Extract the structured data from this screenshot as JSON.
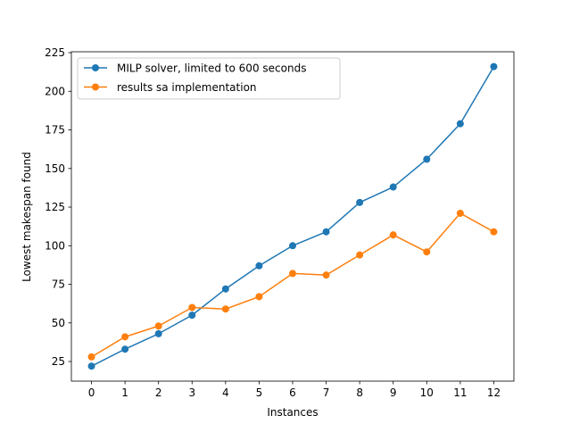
{
  "chart_data": {
    "type": "line",
    "x": [
      0,
      1,
      2,
      3,
      4,
      5,
      6,
      7,
      8,
      9,
      10,
      11,
      12
    ],
    "xlabel": "Instances",
    "ylabel": "Lowest makespan found",
    "xticks": [
      "0",
      "1",
      "2",
      "3",
      "4",
      "5",
      "6",
      "7",
      "8",
      "9",
      "10",
      "11",
      "12"
    ],
    "yticks": [
      25,
      50,
      75,
      100,
      125,
      150,
      175,
      200,
      225
    ],
    "xlim": [
      -0.6,
      12.6
    ],
    "ylim": [
      12.3,
      225.6
    ],
    "grid": false,
    "legend_position": "upper-left",
    "series": [
      {
        "name": "MILP solver, limited to 600 seconds",
        "color": "#1f77b4",
        "marker": "circle",
        "values": [
          22,
          33,
          43,
          55,
          72,
          87,
          100,
          109,
          128,
          138,
          156,
          179,
          216
        ]
      },
      {
        "name": "results sa implementation",
        "color": "#ff7f0e",
        "marker": "circle",
        "values": [
          28,
          41,
          48,
          60,
          59,
          67,
          82,
          81,
          94,
          107,
          96,
          121,
          109
        ]
      }
    ]
  }
}
